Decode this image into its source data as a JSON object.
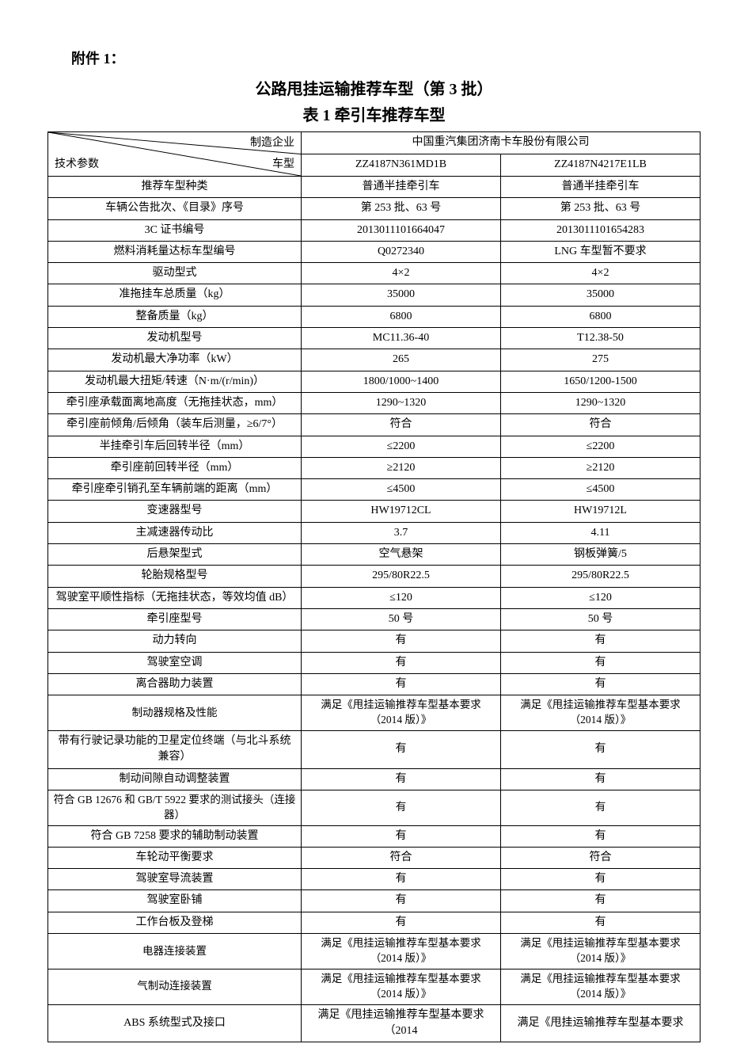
{
  "attachment_label": "附件 1：",
  "title": "公路甩挂运输推荐车型（第 3 批）",
  "subtitle": "表 1 牵引车推荐车型",
  "header": {
    "manufacturer_label": "制造企业",
    "tech_param_label": "技术参数",
    "model_label": "车型",
    "manufacturer_name": "中国重汽集团济南卡车股份有限公司",
    "model_a": "ZZ4187N361MD1B",
    "model_b": "ZZ4187N4217E1LB"
  },
  "rows": [
    {
      "label": "推荐车型种类",
      "a": "普通半挂牵引车",
      "b": "普通半挂牵引车"
    },
    {
      "label": "车辆公告批次、《目录》序号",
      "a": "第 253 批、63 号",
      "b": "第 253 批、63 号"
    },
    {
      "label": "3C 证书编号",
      "a": "2013011101664047",
      "b": "2013011101654283"
    },
    {
      "label": "燃料消耗量达标车型编号",
      "a": "Q0272340",
      "b": "LNG 车型暂不要求"
    },
    {
      "label": "驱动型式",
      "a": "4×2",
      "b": "4×2"
    },
    {
      "label": "准拖挂车总质量（kg）",
      "a": "35000",
      "b": "35000"
    },
    {
      "label": "整备质量（kg）",
      "a": "6800",
      "b": "6800"
    },
    {
      "label": "发动机型号",
      "a": "MC11.36-40",
      "b": "T12.38-50"
    },
    {
      "label": "发动机最大净功率（kW）",
      "a": "265",
      "b": "275"
    },
    {
      "label": "发动机最大扭矩/转速（N·m/(r/min)）",
      "a": "1800/1000~1400",
      "b": "1650/1200-1500"
    },
    {
      "label": "牵引座承载面离地高度（无拖挂状态，mm）",
      "a": "1290~1320",
      "b": "1290~1320"
    },
    {
      "label": "牵引座前倾角/后倾角（装车后测量，≥6/7°）",
      "a": "符合",
      "b": "符合"
    },
    {
      "label": "半挂牵引车后回转半径（mm）",
      "a": "≤2200",
      "b": "≤2200"
    },
    {
      "label": "牵引座前回转半径（mm）",
      "a": "≥2120",
      "b": "≥2120"
    },
    {
      "label": "牵引座牵引销孔至车辆前端的距离（mm）",
      "a": "≤4500",
      "b": "≤4500"
    },
    {
      "label": "变速器型号",
      "a": "HW19712CL",
      "b": "HW19712L"
    },
    {
      "label": "主减速器传动比",
      "a": "3.7",
      "b": "4.11"
    },
    {
      "label": "后悬架型式",
      "a": "空气悬架",
      "b": "钢板弹簧/5"
    },
    {
      "label": "轮胎规格型号",
      "a": "295/80R22.5",
      "b": "295/80R22.5"
    },
    {
      "label": "驾驶室平顺性指标（无拖挂状态，等效均值 dB）",
      "a": "≤120",
      "b": "≤120"
    },
    {
      "label": "牵引座型号",
      "a": "50 号",
      "b": "50 号"
    },
    {
      "label": "动力转向",
      "a": "有",
      "b": "有"
    },
    {
      "label": "驾驶室空调",
      "a": "有",
      "b": "有"
    },
    {
      "label": "离合器助力装置",
      "a": "有",
      "b": "有"
    },
    {
      "label": "制动器规格及性能",
      "a": "满足《甩挂运输推荐车型基本要求（2014 版）》",
      "b": "满足《甩挂运输推荐车型基本要求（2014 版）》"
    },
    {
      "label": "带有行驶记录功能的卫星定位终端（与北斗系统兼容）",
      "a": "有",
      "b": "有"
    },
    {
      "label": "制动间隙自动调整装置",
      "a": "有",
      "b": "有"
    },
    {
      "label": "符合 GB 12676 和 GB/T 5922 要求的测试接头（连接器）",
      "a": "有",
      "b": "有"
    },
    {
      "label": "符合 GB 7258 要求的辅助制动装置",
      "a": "有",
      "b": "有"
    },
    {
      "label": "车轮动平衡要求",
      "a": "符合",
      "b": "符合"
    },
    {
      "label": "驾驶室导流装置",
      "a": "有",
      "b": "有"
    },
    {
      "label": "驾驶室卧铺",
      "a": "有",
      "b": "有"
    },
    {
      "label": "工作台板及登梯",
      "a": "有",
      "b": "有"
    },
    {
      "label": "电器连接装置",
      "a": "满足《甩挂运输推荐车型基本要求（2014 版）》",
      "b": "满足《甩挂运输推荐车型基本要求（2014 版）》"
    },
    {
      "label": "气制动连接装置",
      "a": "满足《甩挂运输推荐车型基本要求（2014 版）》",
      "b": "满足《甩挂运输推荐车型基本要求（2014 版）》"
    },
    {
      "label": "ABS 系统型式及接口",
      "a": "满足《甩挂运输推荐车型基本要求（2014",
      "b": "满足《甩挂运输推荐车型基本要求"
    }
  ]
}
